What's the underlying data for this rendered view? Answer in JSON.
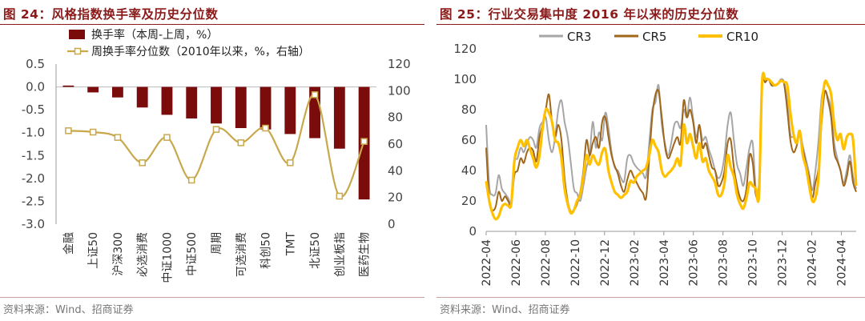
{
  "left": {
    "title": "图 24：风格指数换手率及历史分位数",
    "source": "资料来源：Wind、招商证券",
    "colors": {
      "bar": "#7b0c0c",
      "line": "#c8a84b",
      "axis": "#555555"
    },
    "chart_data": {
      "type": "bar",
      "categories": [
        "金融",
        "上证50",
        "沪深300",
        "必选消费",
        "中证1000",
        "中证500",
        "周期",
        "可选消费",
        "科创50",
        "TMT",
        "北证50",
        "创业板指",
        "医药生物"
      ],
      "series": [
        {
          "name": "换手率（本周-上周，%）",
          "type": "bar",
          "axis": "left",
          "values": [
            0.03,
            -0.12,
            -0.23,
            -0.45,
            -0.61,
            -0.69,
            -0.8,
            -0.9,
            -0.93,
            -1.03,
            -1.12,
            -1.35,
            -2.46
          ]
        },
        {
          "name": "周换手率分位数（2010年以来，%，右轴）",
          "type": "line",
          "axis": "right",
          "values": [
            70,
            69,
            65,
            46,
            65,
            33,
            71,
            61,
            72,
            46,
            97,
            21,
            62
          ]
        }
      ],
      "yleft": {
        "min": -3.0,
        "max": 0.5,
        "ticks": [
          "0.5",
          "0.0",
          "-0.5",
          "-1.0",
          "-1.5",
          "-2.0",
          "-2.5",
          "-3.0"
        ]
      },
      "yright": {
        "min": 0,
        "max": 120,
        "ticks": [
          "120",
          "100",
          "80",
          "60",
          "40",
          "20",
          "0"
        ]
      },
      "legend": "top-left"
    }
  },
  "right": {
    "title": "图 25：行业交易集中度 2016 年以来的历史分位数",
    "source": "资料来源：Wind、招商证券",
    "colors": {
      "CR3": "#a6a6a6",
      "CR5": "#a0661a",
      "CR10": "#ffc000"
    },
    "chart_data": {
      "type": "line",
      "x_start": "2022-04",
      "x_end": "2024-05",
      "x_ticks": [
        "2022-04",
        "2022-06",
        "2022-08",
        "2022-10",
        "2022-12",
        "2023-02",
        "2023-04",
        "2023-06",
        "2023-08",
        "2023-10",
        "2023-12",
        "2024-02",
        "2024-04"
      ],
      "ylim": [
        0,
        120
      ],
      "y_ticks": [
        "120",
        "100",
        "80",
        "60",
        "40",
        "20",
        "0"
      ],
      "legend": "top",
      "series": [
        {
          "name": "CR3",
          "values": [
            70,
            30,
            24,
            25,
            37,
            28,
            25,
            22,
            20,
            45,
            48,
            55,
            52,
            58,
            62,
            60,
            55,
            68,
            72,
            75,
            60,
            52,
            62,
            80,
            86,
            72,
            62,
            45,
            28,
            25,
            20,
            30,
            42,
            50,
            72,
            55,
            65,
            60,
            78,
            68,
            52,
            42,
            40,
            35,
            33,
            48,
            50,
            45,
            42,
            40,
            38,
            36,
            58,
            80,
            85,
            96,
            70,
            58,
            50,
            58,
            70,
            72,
            68,
            80,
            75,
            88,
            74,
            62,
            70,
            60,
            62,
            54,
            48,
            40,
            35,
            38,
            50,
            70,
            78,
            60,
            44,
            38,
            30,
            42,
            55,
            58,
            28,
            32,
            95,
            98,
            100,
            96,
            96,
            97,
            100,
            98,
            85,
            64,
            62,
            59,
            66,
            56,
            47,
            38,
            27,
            40,
            60,
            88,
            92,
            88,
            80,
            58,
            48,
            40,
            32,
            40,
            50,
            36,
            28
          ]
        },
        {
          "name": "CR5",
          "values": [
            55,
            20,
            14,
            16,
            26,
            20,
            23,
            20,
            18,
            37,
            40,
            48,
            45,
            52,
            55,
            53,
            46,
            62,
            70,
            80,
            90,
            72,
            62,
            70,
            60,
            35,
            20,
            13,
            14,
            18,
            26,
            40,
            60,
            50,
            58,
            62,
            55,
            72,
            75,
            62,
            50,
            43,
            38,
            30,
            26,
            34,
            40,
            36,
            32,
            28,
            25,
            22,
            48,
            76,
            90,
            92,
            75,
            56,
            48,
            52,
            58,
            62,
            58,
            86,
            75,
            80,
            72,
            58,
            70,
            55,
            58,
            50,
            42,
            40,
            30,
            32,
            40,
            58,
            60,
            42,
            30,
            22,
            20,
            28,
            50,
            45,
            24,
            30,
            96,
            98,
            100,
            96,
            96,
            97,
            99,
            97,
            80,
            60,
            52,
            56,
            64,
            54,
            44,
            35,
            22,
            32,
            42,
            72,
            92,
            86,
            75,
            52,
            46,
            40,
            30,
            36,
            46,
            32,
            26
          ]
        },
        {
          "name": "CR10",
          "values": [
            33,
            20,
            12,
            8,
            10,
            16,
            18,
            17,
            18,
            46,
            55,
            60,
            56,
            60,
            54,
            48,
            42,
            50,
            68,
            80,
            78,
            72,
            60,
            58,
            48,
            28,
            18,
            12,
            14,
            20,
            24,
            36,
            50,
            44,
            50,
            46,
            44,
            52,
            54,
            40,
            32,
            26,
            24,
            22,
            24,
            26,
            33,
            32,
            36,
            38,
            40,
            42,
            50,
            60,
            56,
            52,
            40,
            36,
            38,
            40,
            43,
            48,
            44,
            70,
            58,
            64,
            56,
            48,
            58,
            46,
            48,
            40,
            36,
            32,
            24,
            24,
            32,
            50,
            42,
            36,
            24,
            18,
            15,
            22,
            32,
            30,
            28,
            24,
            98,
            100,
            100,
            98,
            96,
            97,
            99,
            98,
            96,
            78,
            64,
            58,
            66,
            50,
            42,
            30,
            20,
            22,
            36,
            80,
            98,
            96,
            90,
            70,
            60,
            64,
            54,
            62,
            64,
            60,
            30
          ]
        }
      ]
    }
  }
}
